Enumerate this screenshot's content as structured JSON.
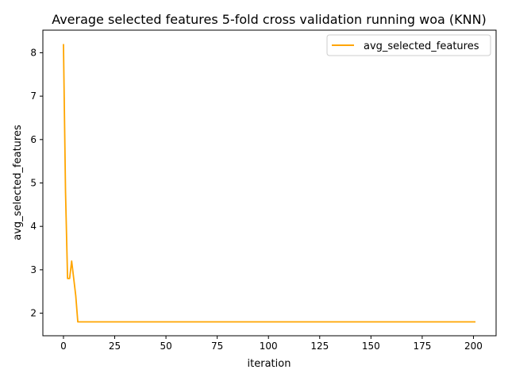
{
  "chart_data": {
    "type": "line",
    "title": "Average selected features 5-fold cross validation running woa (KNN)",
    "xlabel": "iteration",
    "ylabel": "avg_selected_features",
    "xlim": [
      -10.05,
      211.05
    ],
    "ylim": [
      1.48,
      8.52
    ],
    "xticks": [
      0,
      25,
      50,
      75,
      100,
      125,
      150,
      175,
      200
    ],
    "yticks": [
      2,
      3,
      4,
      5,
      6,
      7,
      8
    ],
    "grid": false,
    "legend_position": "upper right",
    "series": [
      {
        "name": "avg_selected_features",
        "color": "#ffa500",
        "x": [
          0,
          1,
          2,
          3,
          4,
          5,
          6,
          7,
          8,
          201
        ],
        "y": [
          8.2,
          4.8,
          2.8,
          2.8,
          3.2,
          2.8,
          2.4,
          1.8,
          1.8,
          1.8
        ]
      }
    ]
  }
}
